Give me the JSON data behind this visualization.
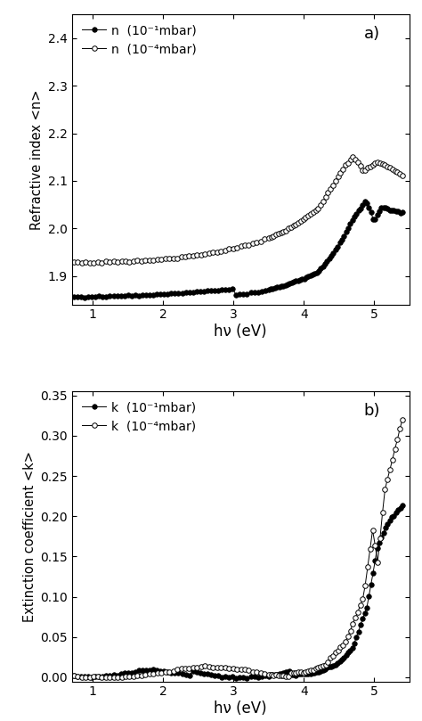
{
  "title_a": "a)",
  "title_b": "b)",
  "xlabel": "hν (eV)",
  "ylabel_a": "Refractive index <n>",
  "ylabel_b": "Extinction coefficient <k>",
  "legend_a1": "n  (10⁻¹mbar)",
  "legend_a2": "n  (10⁻⁴mbar)",
  "legend_b1": "k  (10⁻¹mbar)",
  "legend_b2": "k  (10⁻⁴mbar)",
  "xlim": [
    0.7,
    5.5
  ],
  "ylim_a": [
    1.84,
    2.45
  ],
  "ylim_b": [
    -0.005,
    0.355
  ],
  "yticks_a": [
    1.9,
    2.0,
    2.1,
    2.2,
    2.3,
    2.4
  ],
  "yticks_b": [
    0.0,
    0.05,
    0.1,
    0.15,
    0.2,
    0.25,
    0.3,
    0.35
  ],
  "xticks": [
    1,
    2,
    3,
    4,
    5
  ],
  "color_filled": "#000000",
  "color_open": "#999999",
  "marker_size": 4,
  "linewidth": 0.7,
  "figsize": [
    4.74,
    8.09
  ],
  "dpi": 100
}
